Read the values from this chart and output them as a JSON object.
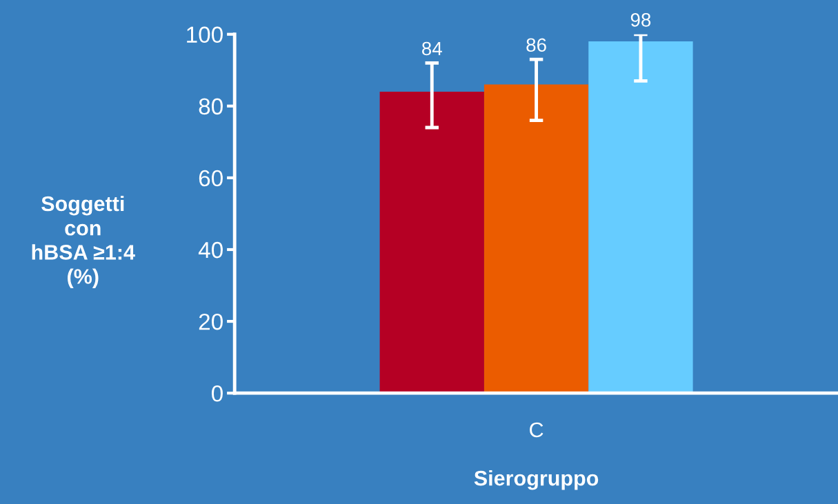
{
  "chart_data": {
    "type": "bar",
    "categories": [
      "C"
    ],
    "xlabel": "Sierogruppo",
    "ylabel": "Soggetti\ncon\nhBSA ≥1:4\n(%)",
    "series": [
      {
        "color": "#b50024",
        "values": [
          84
        ],
        "errors": [
          [
            74,
            92
          ]
        ]
      },
      {
        "color": "#eb5c00",
        "values": [
          86
        ],
        "errors": [
          [
            76,
            93
          ]
        ]
      },
      {
        "color": "#66ccff",
        "values": [
          98
        ],
        "errors": [
          [
            87,
            100
          ]
        ]
      }
    ],
    "ylim": [
      0,
      100
    ],
    "yticks": [
      0,
      20,
      40,
      60,
      80,
      100
    ],
    "data_labels": true,
    "grid": false,
    "legend": false
  }
}
